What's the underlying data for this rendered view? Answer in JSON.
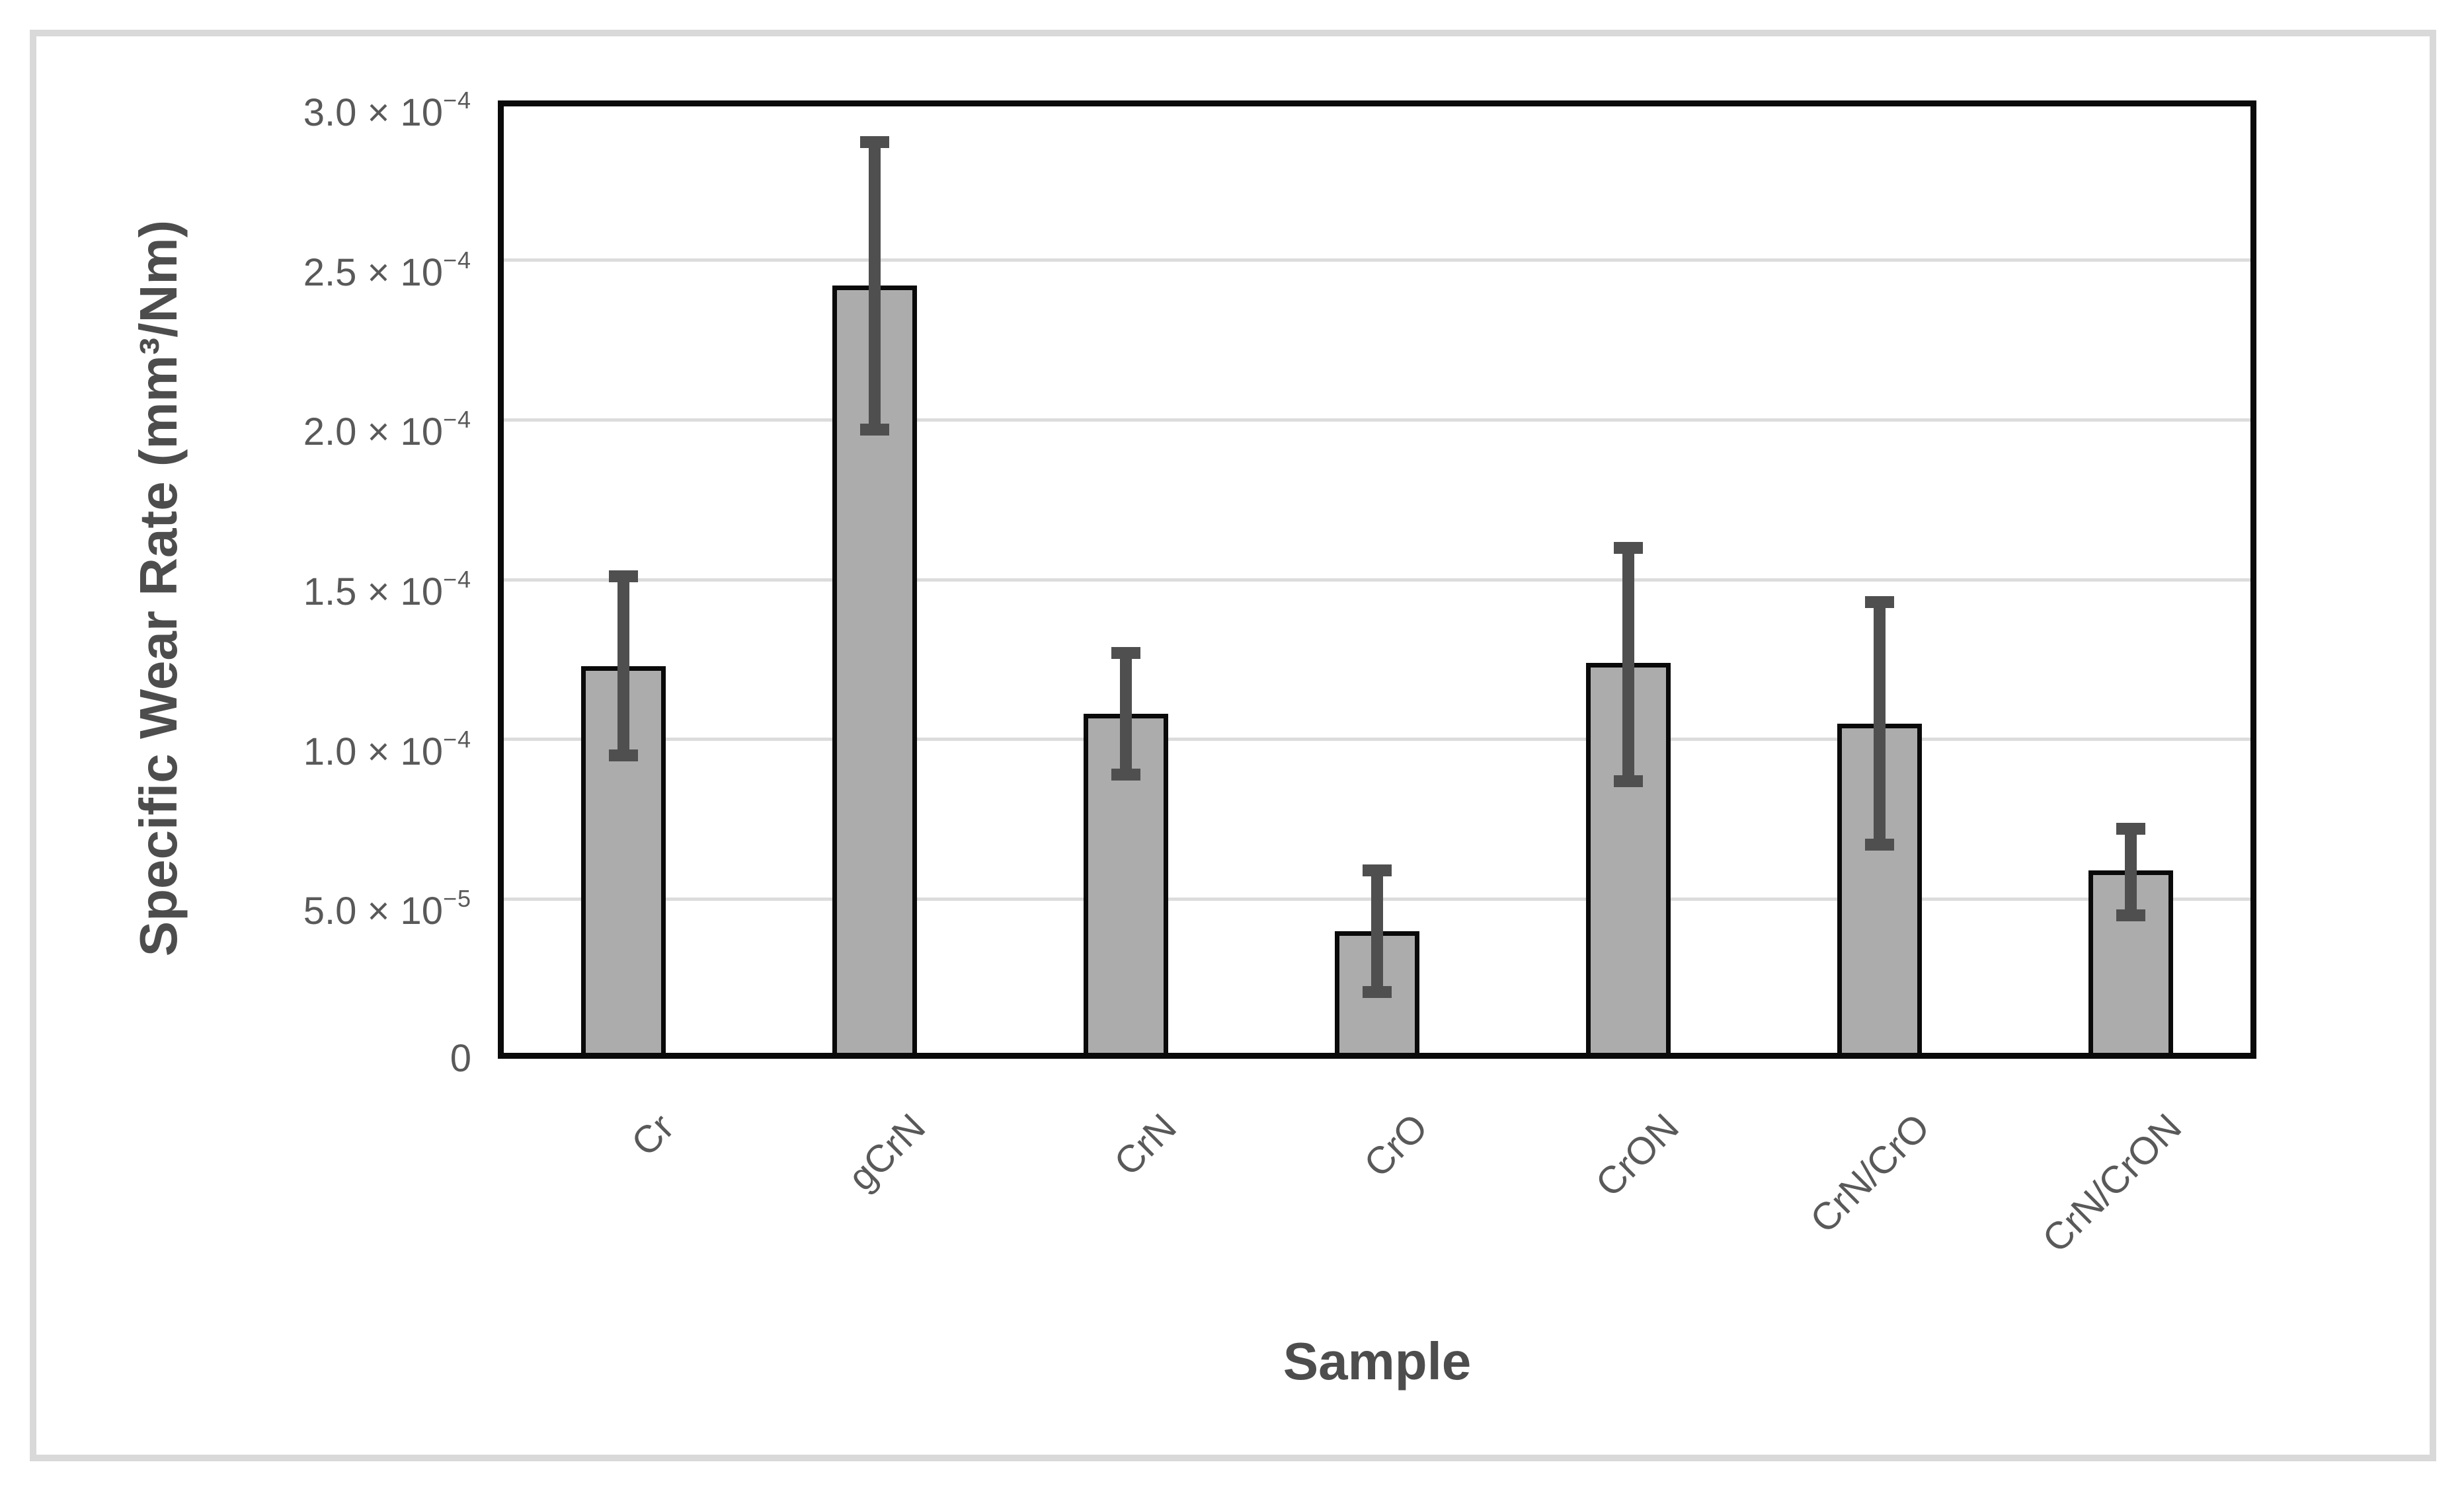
{
  "figure": {
    "background": "#ffffff",
    "border_color": "#d9d9d9"
  },
  "chart_data": {
    "type": "bar",
    "title": "",
    "xlabel": "Sample",
    "ylabel": "Specific Wear Rate (mm³/Nm)",
    "value_units": "×10⁻⁴ mm³/Nm",
    "categories": [
      "Cr",
      "gCrN",
      "CrN",
      "CrO",
      "CrON",
      "CrN/CrO",
      "CrN/CrON"
    ],
    "values": [
      1.23,
      2.42,
      1.08,
      0.4,
      1.24,
      1.05,
      0.59
    ],
    "error_upper": [
      1.51,
      2.87,
      1.27,
      0.59,
      1.6,
      1.43,
      0.72
    ],
    "error_lower": [
      0.95,
      1.97,
      0.89,
      0.21,
      0.87,
      0.67,
      0.45
    ],
    "ylim": [
      0,
      3.0
    ],
    "grid": "horizontal",
    "legend": "none",
    "bar_orientation": "vertical",
    "xlabel_rotation_deg": 45,
    "yticks": [
      {
        "value": 3.0,
        "mantissa": "3.0 × 10",
        "exp": "−4"
      },
      {
        "value": 2.5,
        "mantissa": "2.5 × 10",
        "exp": "−4"
      },
      {
        "value": 2.0,
        "mantissa": "2.0 × 10",
        "exp": "−4"
      },
      {
        "value": 1.5,
        "mantissa": "1.5 × 10",
        "exp": "−4"
      },
      {
        "value": 1.0,
        "mantissa": "1.0 × 10",
        "exp": "−4"
      },
      {
        "value": 0.5,
        "mantissa": "5.0 × 10",
        "exp": "−5"
      },
      {
        "value": 0,
        "mantissa": "0",
        "exp": ""
      }
    ],
    "colors": {
      "bar_fill": "#acacac",
      "bar_border": "#0a0a0a",
      "error_bar": "#4f4f4f",
      "gridline": "#dcdcdc",
      "axis_frame": "#0a0a0a",
      "tick_text": "#595959",
      "title_text": "#4d4d4d"
    }
  }
}
